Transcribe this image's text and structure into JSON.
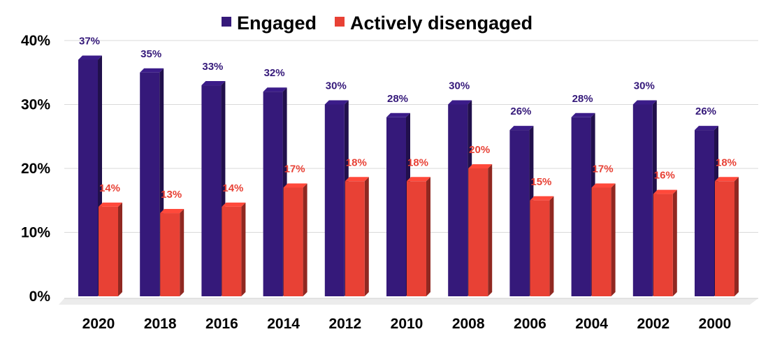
{
  "chart_data": {
    "type": "bar",
    "title": "",
    "xlabel": "",
    "ylabel": "",
    "categories": [
      "2020",
      "2018",
      "2016",
      "2014",
      "2012",
      "2010",
      "2008",
      "2006",
      "2004",
      "2002",
      "2000"
    ],
    "series": [
      {
        "name": "Engaged",
        "color": "#35197a",
        "values": [
          37,
          35,
          33,
          32,
          30,
          28,
          30,
          26,
          28,
          30,
          26
        ],
        "labels": [
          "37%",
          "35%",
          "33%",
          "32%",
          "30%",
          "28%",
          "30%",
          "26%",
          "28%",
          "30%",
          "26%"
        ]
      },
      {
        "name": "Actively disengaged",
        "color": "#e84135",
        "values": [
          14,
          13,
          14,
          17,
          18,
          18,
          20,
          15,
          17,
          16,
          18
        ],
        "labels": [
          "14%",
          "13%",
          "14%",
          "17%",
          "18%",
          "18%",
          "20%",
          "15%",
          "17%",
          "16%",
          "18%"
        ]
      }
    ],
    "ylim": [
      0,
      40
    ],
    "y_ticks": [
      "0%",
      "10%",
      "20%",
      "30%",
      "40%"
    ],
    "grid": true,
    "legend_position": "top-center",
    "style": "3d-bars"
  }
}
